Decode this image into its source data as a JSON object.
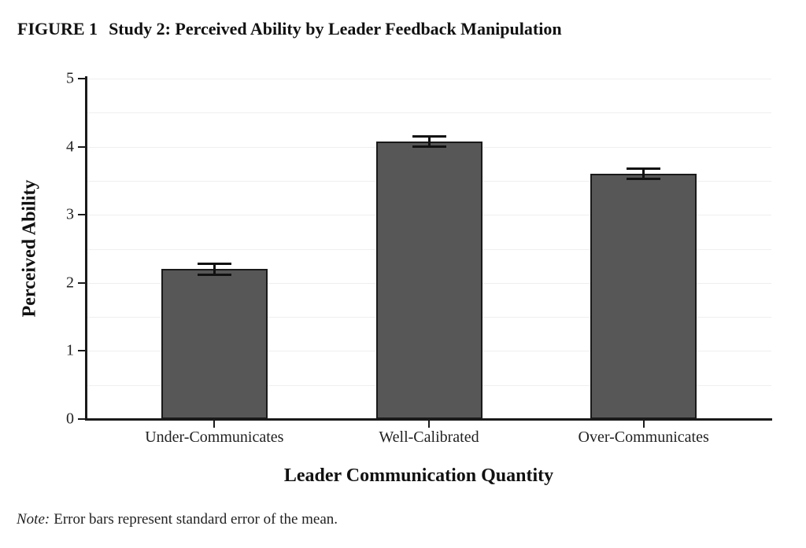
{
  "header": {
    "figure_label": "FIGURE 1",
    "caption": "Study 2: Perceived Ability by Leader Feedback Manipulation"
  },
  "note": {
    "label": "Note:",
    "text": "Error bars represent standard error of the mean."
  },
  "chart_data": {
    "type": "bar",
    "title": "FIGURE 1  Study 2: Perceived Ability by Leader Feedback Manipulation",
    "categories": [
      "Under-Communicates",
      "Well-Calibrated",
      "Over-Communicates"
    ],
    "values": [
      2.2,
      4.08,
      3.6
    ],
    "errors": [
      0.09,
      0.08,
      0.08
    ],
    "error_meaning": "standard error of the mean",
    "xlabel": "Leader Communication Quantity",
    "ylabel": "Perceived Ability",
    "ylim": [
      0,
      5
    ],
    "yticks": [
      0,
      1,
      2,
      3,
      4,
      5
    ],
    "gridline_step": 0.5,
    "grid": true,
    "legend": "none",
    "bar_fill_color": "#575757",
    "bar_border_color": "#1a1a1a",
    "gridline_color": "#efefef",
    "axis_color": "#1a1a1a"
  }
}
